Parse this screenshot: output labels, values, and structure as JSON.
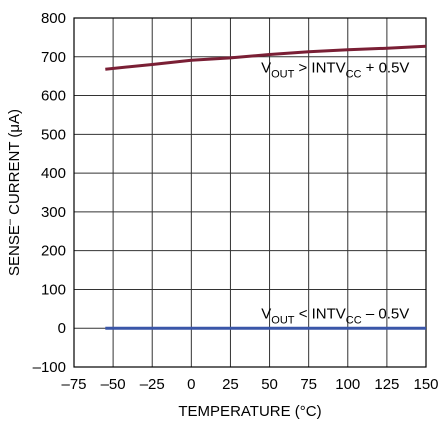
{
  "chart_data": {
    "type": "line",
    "title": "",
    "xlabel": "TEMPERATURE (°C)",
    "ylabel_main": "SENSE",
    "ylabel_sup": "–",
    "ylabel_rest": " CURRENT (μA)",
    "xlim": [
      -75,
      150
    ],
    "ylim": [
      -100,
      800
    ],
    "xticks": [
      -75,
      -50,
      -25,
      0,
      25,
      50,
      75,
      100,
      125,
      150
    ],
    "xtick_labels": [
      "–75",
      "–50",
      "–25",
      "0",
      "25",
      "50",
      "75",
      "100",
      "125",
      "150"
    ],
    "yticks": [
      -100,
      0,
      100,
      200,
      300,
      400,
      500,
      600,
      700,
      800
    ],
    "ytick_labels": [
      "–100",
      "0",
      "100",
      "200",
      "300",
      "400",
      "500",
      "600",
      "700",
      "800"
    ],
    "grid": true,
    "series": [
      {
        "color": "#7a1f35",
        "x": [
          -55,
          -25,
          0,
          25,
          50,
          75,
          100,
          125,
          150
        ],
        "y": [
          668,
          680,
          691,
          697,
          706,
          713,
          718,
          722,
          727
        ]
      },
      {
        "color": "#3a56a8",
        "x": [
          -55,
          0,
          50,
          100,
          150
        ],
        "y": [
          0,
          0,
          0,
          0,
          0
        ]
      }
    ],
    "annotations": [
      {
        "at": [
          92,
          660
        ],
        "parts": [
          {
            "text": "V",
            "style": "normal"
          },
          {
            "text": "OUT",
            "style": "sub"
          },
          {
            "text": " > INTV",
            "style": "normal"
          },
          {
            "text": "CC",
            "style": "sub"
          },
          {
            "text": " + 0.5V",
            "style": "normal"
          }
        ]
      },
      {
        "at": [
          92,
          25
        ],
        "parts": [
          {
            "text": "V",
            "style": "normal"
          },
          {
            "text": "OUT",
            "style": "sub"
          },
          {
            "text": " < INTV",
            "style": "normal"
          },
          {
            "text": "CC",
            "style": "sub"
          },
          {
            "text": " – 0.5V",
            "style": "normal"
          }
        ]
      }
    ]
  }
}
